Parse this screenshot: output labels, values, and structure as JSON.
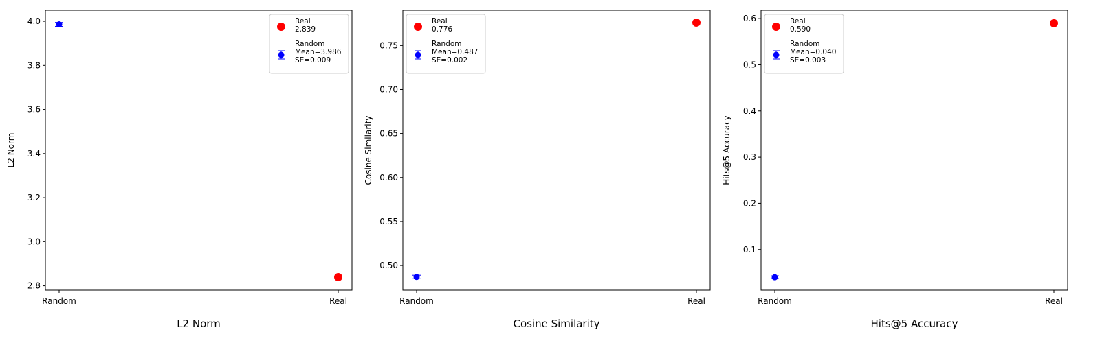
{
  "chart_data": [
    {
      "type": "scatter",
      "title": "L2 Norm",
      "ylabel": "L2 Norm",
      "categories": [
        "Random",
        "Real"
      ],
      "ylim": [
        2.78,
        4.05
      ],
      "yticks": [
        "2.8",
        "3.0",
        "3.2",
        "3.4",
        "3.6",
        "3.8",
        "4.0"
      ],
      "grid": false,
      "legend_position": "top-right",
      "series": [
        {
          "name": "Real",
          "x": "Real",
          "value": 2.839,
          "color": "#ff0000",
          "legend_lines": [
            "Real",
            "2.839"
          ]
        },
        {
          "name": "Random",
          "x": "Random",
          "value": 3.986,
          "error": 0.009,
          "color": "#0000ff",
          "legend_lines": [
            "Random",
            "Mean=3.986",
            "SE=0.009"
          ]
        }
      ]
    },
    {
      "type": "scatter",
      "title": "Cosine Similarity",
      "ylabel": "Cosine Similarity",
      "categories": [
        "Random",
        "Real"
      ],
      "ylim": [
        0.472,
        0.79
      ],
      "yticks": [
        "0.50",
        "0.55",
        "0.60",
        "0.65",
        "0.70",
        "0.75"
      ],
      "grid": false,
      "legend_position": "top-left",
      "series": [
        {
          "name": "Real",
          "x": "Real",
          "value": 0.776,
          "color": "#ff0000",
          "legend_lines": [
            "Real",
            "0.776"
          ]
        },
        {
          "name": "Random",
          "x": "Random",
          "value": 0.487,
          "error": 0.002,
          "color": "#0000ff",
          "legend_lines": [
            "Random",
            "Mean=0.487",
            "SE=0.002"
          ]
        }
      ]
    },
    {
      "type": "scatter",
      "title": "Hits@5 Accuracy",
      "ylabel": "Hits@5 Accuracy",
      "categories": [
        "Random",
        "Real"
      ],
      "ylim": [
        0.012,
        0.618
      ],
      "yticks": [
        "0.1",
        "0.2",
        "0.3",
        "0.4",
        "0.5",
        "0.6"
      ],
      "grid": false,
      "legend_position": "top-left",
      "series": [
        {
          "name": "Real",
          "x": "Real",
          "value": 0.59,
          "color": "#ff0000",
          "legend_lines": [
            "Real",
            "0.590"
          ]
        },
        {
          "name": "Random",
          "x": "Random",
          "value": 0.04,
          "error": 0.003,
          "color": "#0000ff",
          "legend_lines": [
            "Random",
            "Mean=0.040",
            "SE=0.003"
          ]
        }
      ]
    }
  ]
}
